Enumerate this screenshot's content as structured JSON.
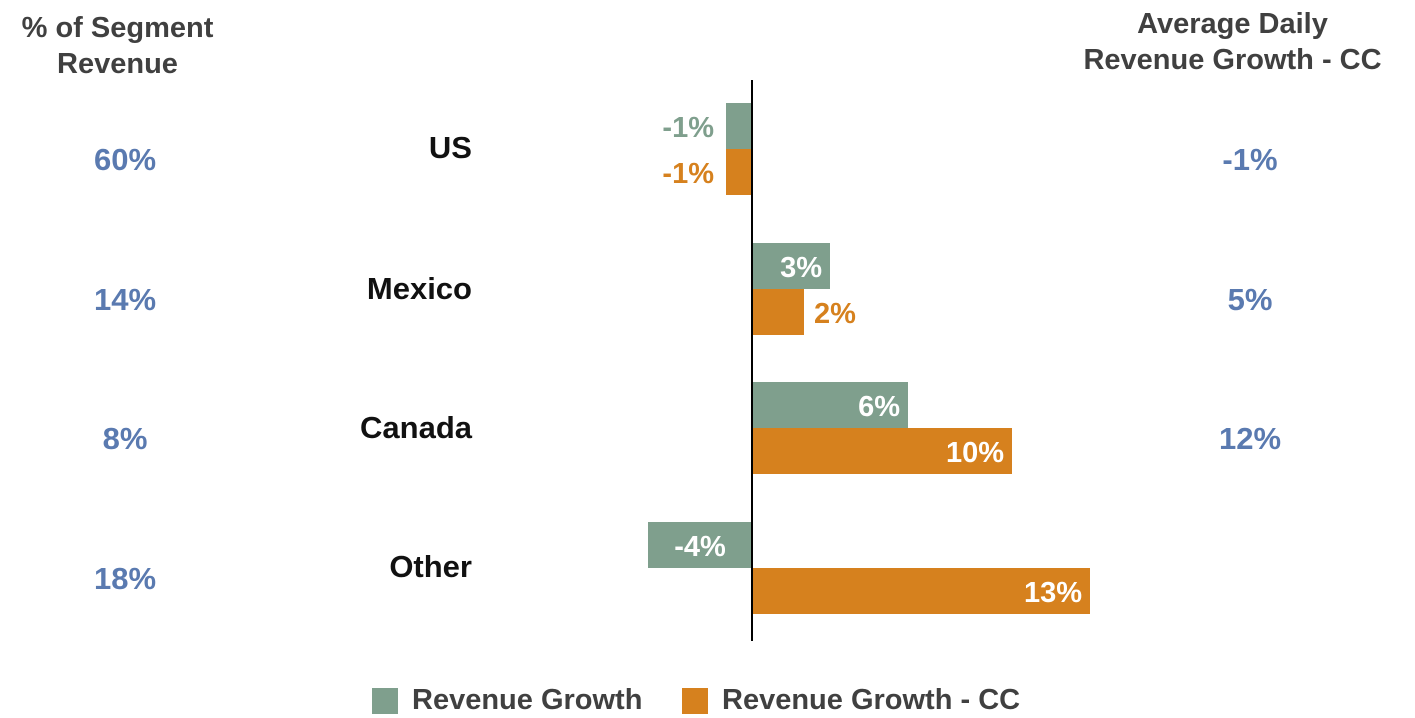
{
  "headers": {
    "left": "% of Segment\nRevenue",
    "right": "Average Daily\nRevenue Growth - CC"
  },
  "colors": {
    "revenue_growth": "#7f9f8d",
    "revenue_growth_cc": "#d6811e",
    "side_values": "#5a7ab0",
    "labels": "#111111"
  },
  "rows": [
    {
      "region": "US",
      "share": "60%",
      "adr_growth": "-1%"
    },
    {
      "region": "Mexico",
      "share": "14%",
      "adr_growth": "5%"
    },
    {
      "region": "Canada",
      "share": "8%",
      "adr_growth": "12%"
    },
    {
      "region": "Other",
      "share": "18%",
      "adr_growth": ""
    }
  ],
  "legend": [
    "Revenue Growth",
    "Revenue Growth - CC"
  ],
  "chart_data": {
    "type": "bar",
    "orientation": "horizontal",
    "categories": [
      "US",
      "Mexico",
      "Canada",
      "Other"
    ],
    "series": [
      {
        "name": "Revenue Growth",
        "values": [
          -1,
          3,
          6,
          -4
        ],
        "labels": [
          "-1%",
          "3%",
          "6%",
          "-4%"
        ]
      },
      {
        "name": "Revenue Growth - CC",
        "values": [
          -1,
          2,
          10,
          13
        ],
        "labels": [
          "-1%",
          "2%",
          "10%",
          "13%"
        ]
      }
    ],
    "unit": "%",
    "xlim": [
      -4,
      13
    ],
    "grid": false,
    "legend_position": "bottom"
  }
}
